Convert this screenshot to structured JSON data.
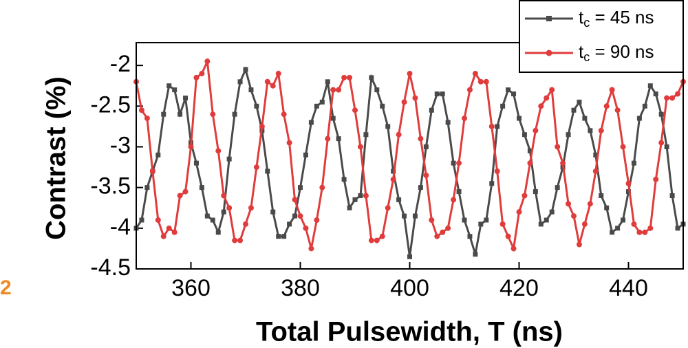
{
  "chart_data": {
    "type": "line",
    "xlabel": "Total Pulsewidth, T (ns)",
    "ylabel": "Contrast (%)",
    "panel_label": "2",
    "x": [
      350,
      351,
      352,
      353,
      354,
      355,
      356,
      357,
      358,
      359,
      360,
      361,
      362,
      363,
      364,
      365,
      366,
      367,
      368,
      369,
      370,
      371,
      372,
      373,
      374,
      375,
      376,
      377,
      378,
      379,
      380,
      381,
      382,
      383,
      384,
      385,
      386,
      387,
      388,
      389,
      390,
      391,
      392,
      393,
      394,
      395,
      396,
      397,
      398,
      399,
      400,
      401,
      402,
      403,
      404,
      405,
      406,
      407,
      408,
      409,
      410,
      411,
      412,
      413,
      414,
      415,
      416,
      417,
      418,
      419,
      420,
      421,
      422,
      423,
      424,
      425,
      426,
      427,
      428,
      429,
      430,
      431,
      432,
      433,
      434,
      435,
      436,
      437,
      438,
      439,
      440,
      441,
      442,
      443,
      444,
      445,
      446,
      447,
      448,
      449,
      450
    ],
    "series": [
      {
        "name": "tc = 45 ns",
        "color": "#4a4a4a",
        "marker": "square",
        "values": [
          -4.0,
          -3.9,
          -3.5,
          -3.3,
          -3.1,
          -2.6,
          -2.25,
          -2.3,
          -2.6,
          -2.4,
          -2.95,
          -3.2,
          -3.5,
          -3.85,
          -3.9,
          -4.05,
          -3.8,
          -3.15,
          -2.6,
          -2.2,
          -2.05,
          -2.3,
          -2.5,
          -2.8,
          -3.3,
          -3.8,
          -4.1,
          -4.1,
          -3.95,
          -3.85,
          -3.5,
          -3.1,
          -2.7,
          -2.5,
          -2.45,
          -2.2,
          -2.65,
          -2.9,
          -3.4,
          -3.75,
          -3.65,
          -3.6,
          -2.85,
          -2.15,
          -2.3,
          -2.5,
          -2.75,
          -3.3,
          -3.65,
          -3.85,
          -4.35,
          -3.85,
          -3.5,
          -3.0,
          -2.55,
          -2.35,
          -2.35,
          -2.7,
          -3.2,
          -3.55,
          -3.9,
          -4.1,
          -4.32,
          -3.95,
          -3.9,
          -3.45,
          -2.75,
          -2.5,
          -2.3,
          -2.35,
          -2.65,
          -2.85,
          -3.05,
          -3.55,
          -3.95,
          -3.9,
          -3.8,
          -3.5,
          -3.25,
          -2.85,
          -2.55,
          -2.45,
          -2.65,
          -2.8,
          -3.1,
          -3.6,
          -3.75,
          -4.05,
          -4.0,
          -3.9,
          -3.55,
          -3.2,
          -2.65,
          -2.5,
          -2.25,
          -2.35,
          -2.6,
          -3.0,
          -3.6,
          -4.0,
          -3.95
        ]
      },
      {
        "name": "tc = 90 ns",
        "color": "#e03c3c",
        "marker": "circle",
        "values": [
          -2.2,
          -2.55,
          -2.65,
          -3.3,
          -3.9,
          -4.1,
          -4.0,
          -4.05,
          -3.6,
          -3.55,
          -3.0,
          -2.15,
          -2.1,
          -1.95,
          -2.6,
          -3.05,
          -3.6,
          -3.75,
          -4.15,
          -4.15,
          -3.95,
          -3.75,
          -3.25,
          -2.75,
          -2.2,
          -2.25,
          -2.1,
          -2.6,
          -2.95,
          -3.65,
          -3.85,
          -4.0,
          -4.25,
          -3.9,
          -3.5,
          -2.9,
          -2.3,
          -2.3,
          -2.15,
          -2.15,
          -2.55,
          -3.0,
          -3.6,
          -4.15,
          -4.15,
          -4.1,
          -3.75,
          -3.4,
          -2.85,
          -2.45,
          -2.1,
          -2.4,
          -2.9,
          -3.35,
          -3.9,
          -4.1,
          -4.05,
          -4.0,
          -3.65,
          -3.2,
          -2.65,
          -2.3,
          -2.1,
          -2.2,
          -2.2,
          -2.75,
          -3.3,
          -3.95,
          -4.1,
          -4.25,
          -3.8,
          -3.6,
          -3.2,
          -2.8,
          -2.5,
          -2.4,
          -2.3,
          -3.0,
          -3.2,
          -3.7,
          -3.85,
          -4.2,
          -3.95,
          -3.7,
          -3.3,
          -2.8,
          -2.5,
          -2.3,
          -2.55,
          -3.0,
          -3.45,
          -3.95,
          -4.05,
          -4.05,
          -4.0,
          -3.4,
          -2.95,
          -2.4,
          -2.4,
          -2.35,
          -2.2
        ]
      }
    ],
    "xlim": [
      350,
      450
    ],
    "xticks": [
      360,
      380,
      400,
      420,
      440
    ],
    "ylim": [
      -4.5,
      -1.72
    ],
    "yticks": [
      -2,
      -2.5,
      -3,
      -3.5,
      -4,
      -4.5
    ],
    "legend": "top-right"
  }
}
